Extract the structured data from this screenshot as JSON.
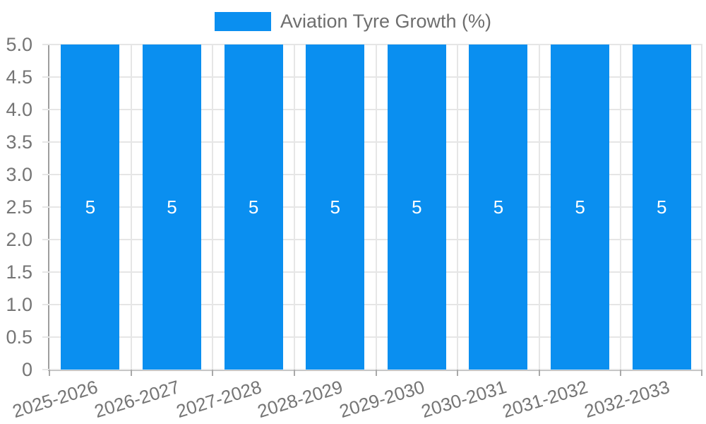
{
  "legend": {
    "label": "Aviation Tyre Growth (%)"
  },
  "chart_data": {
    "type": "bar",
    "title": "Aviation Tyre Growth (%)",
    "categories": [
      "2025-2026",
      "2026-2027",
      "2027-2028",
      "2028-2029",
      "2029-2030",
      "2030-2031",
      "2031-2032",
      "2032-2033"
    ],
    "values": [
      5,
      5,
      5,
      5,
      5,
      5,
      5,
      5
    ],
    "bar_labels": [
      "5",
      "5",
      "5",
      "5",
      "5",
      "5",
      "5",
      "5"
    ],
    "xlabel": "",
    "ylabel": "",
    "ylim": [
      0,
      5
    ],
    "y_ticks": [
      "0",
      "0.5",
      "1.0",
      "1.5",
      "2.0",
      "2.5",
      "3.0",
      "3.5",
      "4.0",
      "4.5",
      "5.0"
    ],
    "grid": true,
    "legend_position": "top-center",
    "colors": {
      "bar": "#0a8ff0",
      "bar_label": "#ffffff",
      "axis_text": "#757575",
      "legend_text": "#6e6e6e",
      "gridline": "#e6e6e6",
      "y_axis_line": "#9e9e9e",
      "x_axis_line": "#b3b3b3",
      "tick": "#a9a9a9"
    }
  }
}
